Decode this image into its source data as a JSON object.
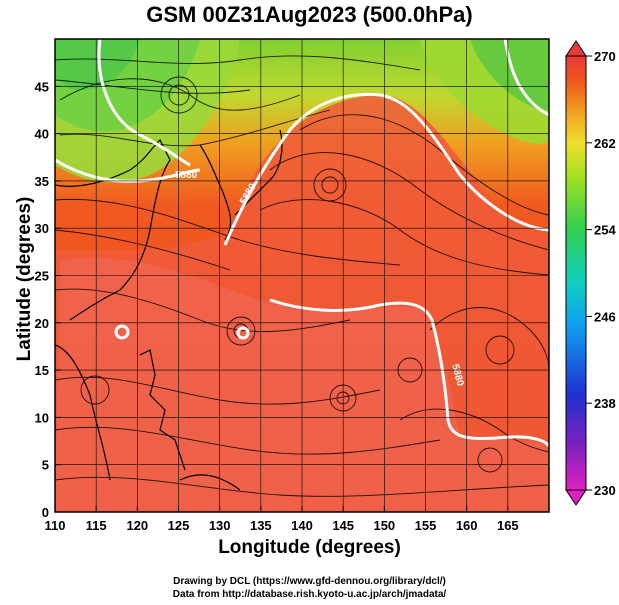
{
  "title": "GSM 00Z31Aug2023 (500.0hPa)",
  "xlabel": "Longitude (degrees)",
  "ylabel": "Latitude  (degrees)",
  "credits": [
    "Drawing by DCL (https://www.gfd-dennou.org/library/dcl/)",
    "Data from http://database.rish.kyoto-u.ac.jp/arch/jmadata/"
  ],
  "map": {
    "lon_range": [
      110,
      170
    ],
    "lat_range": [
      0,
      50
    ],
    "lon_ticks": [
      110,
      115,
      120,
      125,
      130,
      135,
      140,
      145,
      150,
      155,
      160,
      165
    ],
    "lat_ticks": [
      0,
      5,
      10,
      15,
      20,
      25,
      30,
      35,
      40,
      45
    ],
    "contour_labels": [
      "5880",
      "5880",
      "5880"
    ],
    "gridlines": true,
    "streamlines": true
  },
  "colorbar": {
    "ticks": [
      270,
      262,
      254,
      246,
      238,
      230
    ],
    "range": [
      230,
      270
    ],
    "colors": [
      "#e020c0",
      "#5020c0",
      "#1840e0",
      "#10a0f0",
      "#10d0d0",
      "#30d050",
      "#a0e020",
      "#f0e030",
      "#f0a020",
      "#f05020",
      "#e83a3a"
    ]
  }
}
